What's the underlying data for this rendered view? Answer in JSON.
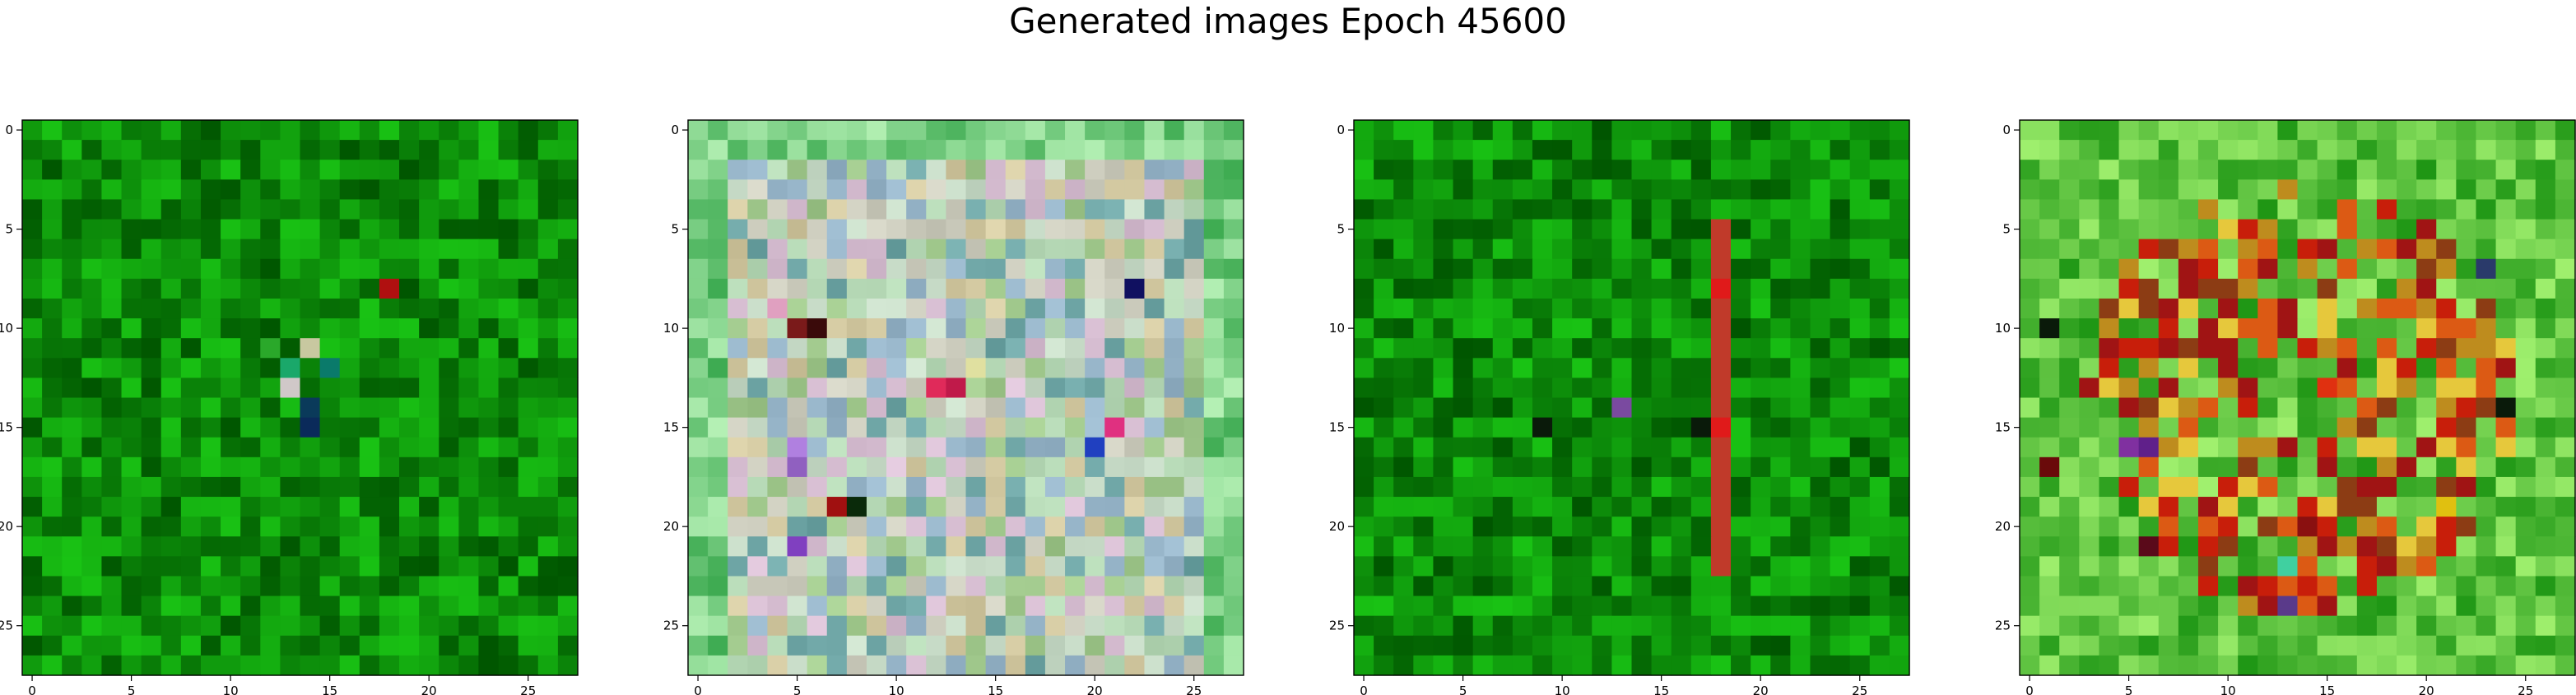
{
  "figure": {
    "title": "Generated images Epoch 45600"
  },
  "chart_data": [
    {
      "type": "heatmap",
      "description_kind": "image",
      "palette": "green",
      "grid_size": 28,
      "x_ticks": [
        0,
        5,
        10,
        15,
        20,
        25
      ],
      "y_ticks": [
        0,
        5,
        10,
        15,
        20,
        25
      ],
      "xlim": [
        -0.5,
        27.5
      ],
      "ylim": [
        27.5,
        -0.5
      ],
      "grid": false,
      "highlights": [
        {
          "row": 8,
          "col": 18,
          "color": "#b01010"
        },
        {
          "row": 11,
          "col": 14,
          "color": "#c8c8a0"
        },
        {
          "row": 12,
          "col": 13,
          "color": "#1aa86a"
        },
        {
          "row": 13,
          "col": 13,
          "color": "#d0c8c8"
        },
        {
          "row": 14,
          "col": 14,
          "color": "#0a3a5a"
        },
        {
          "row": 15,
          "col": 14,
          "color": "#0a2a5a"
        },
        {
          "row": 11,
          "col": 12,
          "color": "#2aa82a"
        },
        {
          "row": 12,
          "col": 15,
          "color": "#0a7a6a"
        }
      ]
    },
    {
      "type": "heatmap",
      "description_kind": "image",
      "palette": "pastel",
      "grid_size": 28,
      "x_ticks": [
        0,
        5,
        10,
        15,
        20,
        25
      ],
      "y_ticks": [
        0,
        5,
        10,
        15,
        20,
        25
      ],
      "xlim": [
        -0.5,
        27.5
      ],
      "ylim": [
        27.5,
        -0.5
      ],
      "grid": false,
      "highlights": [
        {
          "row": 10,
          "col": 5,
          "color": "#7a1a1a"
        },
        {
          "row": 10,
          "col": 6,
          "color": "#3a0a0a"
        },
        {
          "row": 9,
          "col": 4,
          "color": "#e0a0c0"
        },
        {
          "row": 13,
          "col": 12,
          "color": "#e02a5a"
        },
        {
          "row": 13,
          "col": 13,
          "color": "#c01a4a"
        },
        {
          "row": 12,
          "col": 14,
          "color": "#e0e0a0"
        },
        {
          "row": 16,
          "col": 5,
          "color": "#b080e0"
        },
        {
          "row": 17,
          "col": 5,
          "color": "#9060c0"
        },
        {
          "row": 19,
          "col": 7,
          "color": "#a01010"
        },
        {
          "row": 19,
          "col": 8,
          "color": "#0a2a0a"
        },
        {
          "row": 21,
          "col": 5,
          "color": "#8040c0"
        },
        {
          "row": 8,
          "col": 22,
          "color": "#101060"
        },
        {
          "row": 16,
          "col": 20,
          "color": "#2040c0"
        },
        {
          "row": 15,
          "col": 21,
          "color": "#e03080"
        }
      ]
    },
    {
      "type": "heatmap",
      "description_kind": "image",
      "palette": "green",
      "grid_size": 28,
      "x_ticks": [
        0,
        5,
        10,
        15,
        20,
        25
      ],
      "y_ticks": [
        0,
        5,
        10,
        15,
        20,
        25
      ],
      "xlim": [
        -0.5,
        27.5
      ],
      "ylim": [
        27.5,
        -0.5
      ],
      "grid": false,
      "stripe": {
        "col": 18,
        "from_row": 5,
        "to_row": 22,
        "color": "#c03a2a"
      },
      "highlights": [
        {
          "row": 8,
          "col": 18,
          "color": "#e01a1a"
        },
        {
          "row": 15,
          "col": 18,
          "color": "#e01a1a"
        },
        {
          "row": 14,
          "col": 13,
          "color": "#7a4aa0"
        },
        {
          "row": 15,
          "col": 9,
          "color": "#0a1a0a"
        },
        {
          "row": 15,
          "col": 17,
          "color": "#0a1a0a"
        }
      ]
    },
    {
      "type": "heatmap",
      "description_kind": "image",
      "palette": "warm",
      "grid_size": 28,
      "x_ticks": [
        0,
        5,
        10,
        15,
        20,
        25
      ],
      "y_ticks": [
        0,
        5,
        10,
        15,
        20,
        25
      ],
      "xlim": [
        -0.5,
        27.5
      ],
      "ylim": [
        27.5,
        -0.5
      ],
      "grid": false,
      "highlights": [
        {
          "row": 10,
          "col": 1,
          "color": "#0a1a0a"
        },
        {
          "row": 14,
          "col": 24,
          "color": "#0a1a0a"
        },
        {
          "row": 16,
          "col": 5,
          "color": "#8030a0"
        },
        {
          "row": 16,
          "col": 6,
          "color": "#60208a"
        },
        {
          "row": 17,
          "col": 1,
          "color": "#6a0a0a"
        },
        {
          "row": 19,
          "col": 21,
          "color": "#e0c010"
        },
        {
          "row": 20,
          "col": 14,
          "color": "#8a1010"
        },
        {
          "row": 21,
          "col": 6,
          "color": "#5a0a1a"
        },
        {
          "row": 22,
          "col": 13,
          "color": "#40d0a0"
        },
        {
          "row": 24,
          "col": 13,
          "color": "#5a3a8a"
        },
        {
          "row": 7,
          "col": 23,
          "color": "#2a3a6a"
        },
        {
          "row": 13,
          "col": 15,
          "color": "#e03010"
        }
      ]
    }
  ]
}
